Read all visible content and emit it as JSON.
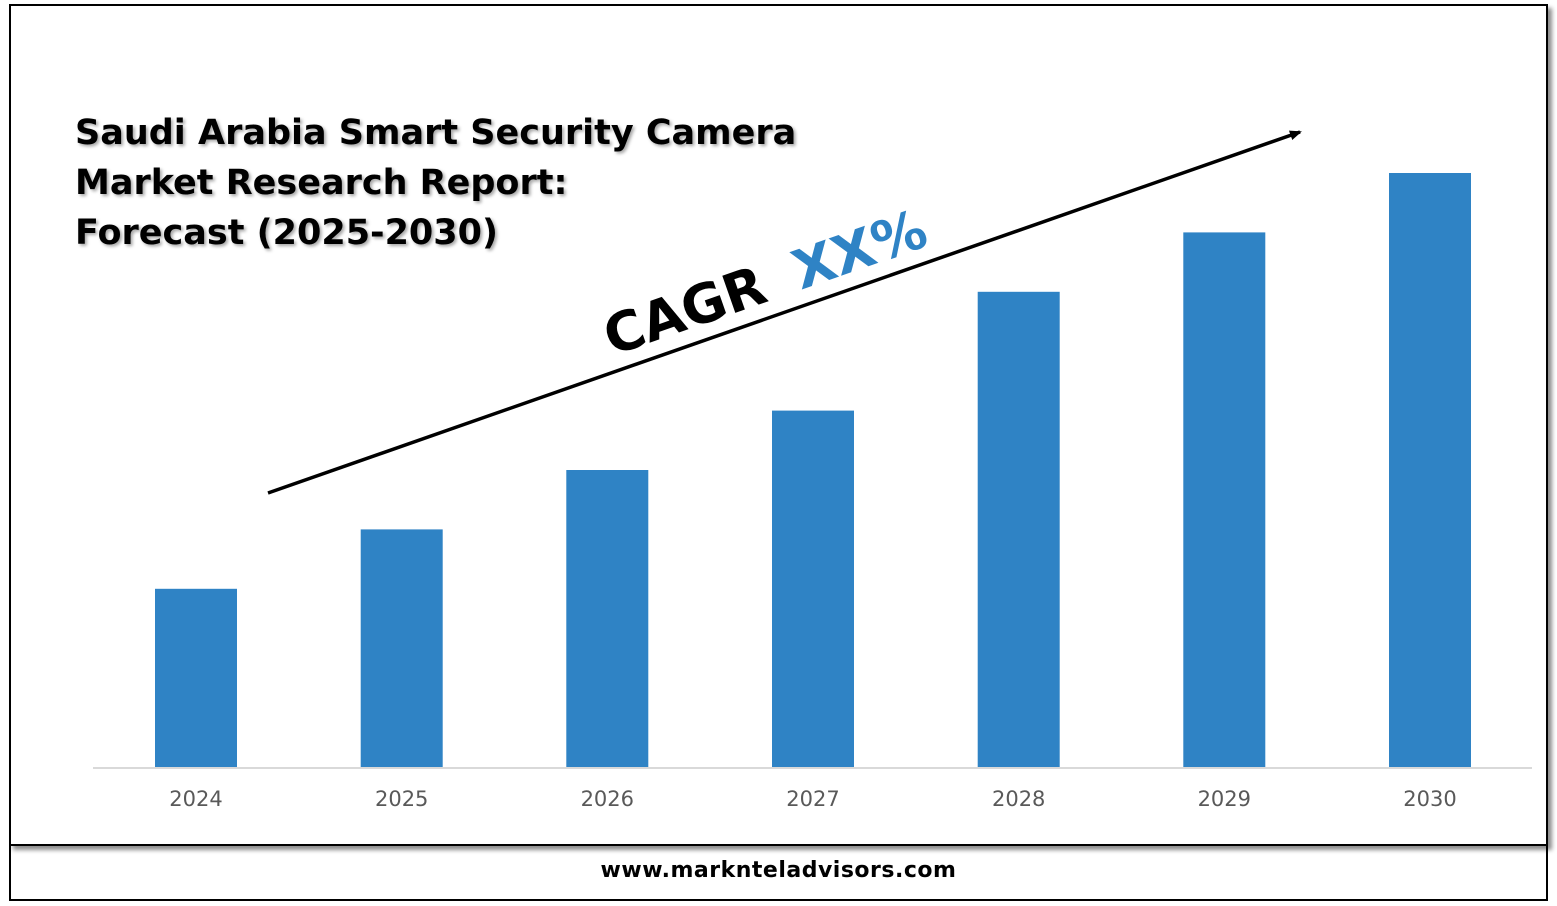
{
  "title_lines": [
    "Saudi Arabia Smart Security Camera",
    "Market Research Report:",
    "Forecast (2025-2030)"
  ],
  "cagr": {
    "label": "CAGR",
    "value": "XX%",
    "value_color": "#2F83C5"
  },
  "footer": {
    "url": "www.marknteladvisors.com"
  },
  "colors": {
    "bar": "#2F83C5",
    "frame": "#000000",
    "axis": "#D9D9D9",
    "tick_text": "#595959"
  },
  "chart_data": {
    "type": "bar",
    "categories": [
      "2024",
      "2025",
      "2026",
      "2027",
      "2028",
      "2029",
      "2030"
    ],
    "values": [
      30,
      40,
      50,
      60,
      80,
      90,
      100
    ],
    "title": "Saudi Arabia Smart Security Camera Market Research Report: Forecast (2025-2030)",
    "xlabel": "",
    "ylabel": "",
    "ylim": [
      0,
      100
    ],
    "grid": false,
    "legend": "none",
    "annotations": [
      "CAGR XX%"
    ]
  }
}
